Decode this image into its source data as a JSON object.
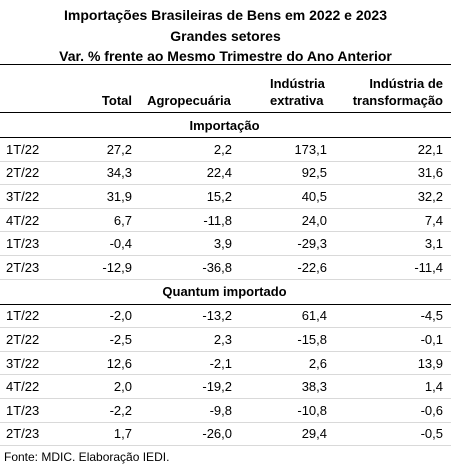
{
  "header": {
    "title": [
      "Importações Brasileiras de Bens em 2022 e 2023",
      "Grandes setores",
      "Var. %  frente ao Mesmo Trimestre do Ano Anterior"
    ]
  },
  "table": {
    "columns": [
      "Total",
      "Agropecuária",
      "Indústria extrativa",
      "Indústria de transformação"
    ],
    "sections": [
      {
        "title": "Importação",
        "rows": [
          [
            "1T/22",
            "27,2",
            "2,2",
            "173,1",
            "22,1"
          ],
          [
            "2T/22",
            "34,3",
            "22,4",
            "92,5",
            "31,6"
          ],
          [
            "3T/22",
            "31,9",
            "15,2",
            "40,5",
            "32,2"
          ],
          [
            "4T/22",
            "6,7",
            "-11,8",
            "24,0",
            "7,4"
          ],
          [
            "1T/23",
            "-0,4",
            "3,9",
            "-29,3",
            "3,1"
          ],
          [
            "2T/23",
            "-12,9",
            "-36,8",
            "-22,6",
            "-11,4"
          ]
        ]
      },
      {
        "title": "Quantum importado",
        "rows": [
          [
            "1T/22",
            "-2,0",
            "-13,2",
            "61,4",
            "-4,5"
          ],
          [
            "2T/22",
            "-2,5",
            "2,3",
            "-15,8",
            "-0,1"
          ],
          [
            "3T/22",
            "12,6",
            "-2,1",
            "2,6",
            "13,9"
          ],
          [
            "4T/22",
            "2,0",
            "-19,2",
            "38,3",
            "1,4"
          ],
          [
            "1T/23",
            "-2,2",
            "-9,8",
            "-10,8",
            "-0,6"
          ],
          [
            "2T/23",
            "1,7",
            "-26,0",
            "29,4",
            "-0,5"
          ]
        ]
      }
    ]
  },
  "footer": {
    "source": "Fonte: MDIC. Elaboração IEDI."
  }
}
